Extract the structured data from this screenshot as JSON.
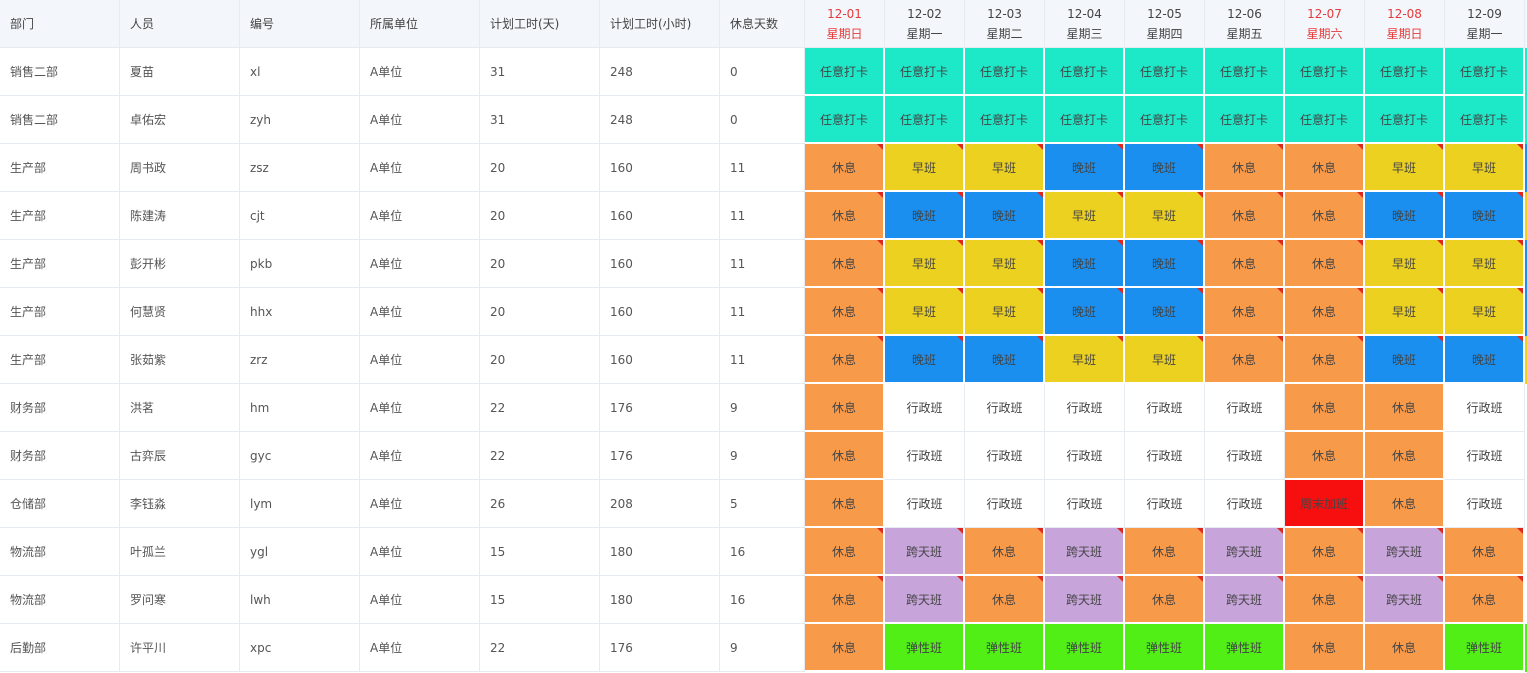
{
  "headers": {
    "dept": "部门",
    "person": "人员",
    "code": "编号",
    "unit": "所属单位",
    "plan_days": "计划工时(天)",
    "plan_hours": "计划工时(小时)",
    "rest_days": "休息天数"
  },
  "days": [
    {
      "date": "12-01",
      "weekday": "星期日",
      "weekend": true
    },
    {
      "date": "12-02",
      "weekday": "星期一",
      "weekend": false
    },
    {
      "date": "12-03",
      "weekday": "星期二",
      "weekend": false
    },
    {
      "date": "12-04",
      "weekday": "星期三",
      "weekend": false
    },
    {
      "date": "12-05",
      "weekday": "星期四",
      "weekend": false
    },
    {
      "date": "12-06",
      "weekday": "星期五",
      "weekend": false
    },
    {
      "date": "12-07",
      "weekday": "星期六",
      "weekend": true
    },
    {
      "date": "12-08",
      "weekday": "星期日",
      "weekend": true
    },
    {
      "date": "12-09",
      "weekday": "星期一",
      "weekend": false
    }
  ],
  "shift_colors": {
    "任意打卡": "#1de9c9",
    "休息": "#f79b4a",
    "早班": "#ecd120",
    "晚班": "#1b8ff0",
    "行政班": "#ffffff",
    "跨天班": "#c7a5db",
    "弹性班": "#52ef17",
    "周末加班": "#f70f0f"
  },
  "edge_colors": [
    "#1de9c9",
    "#1de9c9",
    "#1b8ff0",
    "#ecd120",
    "#1b8ff0",
    "#1b8ff0",
    "#ecd120",
    "#ffffff",
    "#ffffff",
    "#ffffff",
    "#ffffff",
    "#ffffff",
    "#52ef17"
  ],
  "rows": [
    {
      "dept": "销售二部",
      "person": "夏苗",
      "code": "xl",
      "unit": "A单位",
      "plan_days": "31",
      "plan_hours": "248",
      "rest_days": "0",
      "shifts": [
        "任意打卡",
        "任意打卡",
        "任意打卡",
        "任意打卡",
        "任意打卡",
        "任意打卡",
        "任意打卡",
        "任意打卡",
        "任意打卡"
      ],
      "marked": [
        false,
        false,
        false,
        false,
        false,
        false,
        false,
        false,
        false
      ]
    },
    {
      "dept": "销售二部",
      "person": "卓佑宏",
      "code": "zyh",
      "unit": "A单位",
      "plan_days": "31",
      "plan_hours": "248",
      "rest_days": "0",
      "shifts": [
        "任意打卡",
        "任意打卡",
        "任意打卡",
        "任意打卡",
        "任意打卡",
        "任意打卡",
        "任意打卡",
        "任意打卡",
        "任意打卡"
      ],
      "marked": [
        false,
        false,
        false,
        false,
        false,
        false,
        false,
        false,
        false
      ]
    },
    {
      "dept": "生产部",
      "person": "周书政",
      "code": "zsz",
      "unit": "A单位",
      "plan_days": "20",
      "plan_hours": "160",
      "rest_days": "11",
      "shifts": [
        "休息",
        "早班",
        "早班",
        "晚班",
        "晚班",
        "休息",
        "休息",
        "早班",
        "早班"
      ],
      "marked": [
        true,
        true,
        true,
        true,
        true,
        true,
        true,
        true,
        true
      ]
    },
    {
      "dept": "生产部",
      "person": "陈建涛",
      "code": "cjt",
      "unit": "A单位",
      "plan_days": "20",
      "plan_hours": "160",
      "rest_days": "11",
      "shifts": [
        "休息",
        "晚班",
        "晚班",
        "早班",
        "早班",
        "休息",
        "休息",
        "晚班",
        "晚班"
      ],
      "marked": [
        true,
        true,
        true,
        true,
        true,
        true,
        true,
        true,
        true
      ]
    },
    {
      "dept": "生产部",
      "person": "彭开彬",
      "code": "pkb",
      "unit": "A单位",
      "plan_days": "20",
      "plan_hours": "160",
      "rest_days": "11",
      "shifts": [
        "休息",
        "早班",
        "早班",
        "晚班",
        "晚班",
        "休息",
        "休息",
        "早班",
        "早班"
      ],
      "marked": [
        true,
        true,
        true,
        true,
        true,
        true,
        true,
        true,
        true
      ]
    },
    {
      "dept": "生产部",
      "person": "何慧贤",
      "code": "hhx",
      "unit": "A单位",
      "plan_days": "20",
      "plan_hours": "160",
      "rest_days": "11",
      "shifts": [
        "休息",
        "早班",
        "早班",
        "晚班",
        "晚班",
        "休息",
        "休息",
        "早班",
        "早班"
      ],
      "marked": [
        true,
        true,
        true,
        true,
        true,
        true,
        true,
        true,
        true
      ]
    },
    {
      "dept": "生产部",
      "person": "张茹紫",
      "code": "zrz",
      "unit": "A单位",
      "plan_days": "20",
      "plan_hours": "160",
      "rest_days": "11",
      "shifts": [
        "休息",
        "晚班",
        "晚班",
        "早班",
        "早班",
        "休息",
        "休息",
        "晚班",
        "晚班"
      ],
      "marked": [
        true,
        true,
        true,
        true,
        true,
        true,
        true,
        true,
        true
      ]
    },
    {
      "dept": "财务部",
      "person": "洪茗",
      "code": "hm",
      "unit": "A单位",
      "plan_days": "22",
      "plan_hours": "176",
      "rest_days": "9",
      "shifts": [
        "休息",
        "行政班",
        "行政班",
        "行政班",
        "行政班",
        "行政班",
        "休息",
        "休息",
        "行政班"
      ],
      "marked": [
        false,
        false,
        false,
        false,
        false,
        false,
        false,
        false,
        false
      ]
    },
    {
      "dept": "财务部",
      "person": "古弈辰",
      "code": "gyc",
      "unit": "A单位",
      "plan_days": "22",
      "plan_hours": "176",
      "rest_days": "9",
      "shifts": [
        "休息",
        "行政班",
        "行政班",
        "行政班",
        "行政班",
        "行政班",
        "休息",
        "休息",
        "行政班"
      ],
      "marked": [
        false,
        false,
        false,
        false,
        false,
        false,
        false,
        false,
        false
      ]
    },
    {
      "dept": "仓储部",
      "person": "李钰淼",
      "code": "lym",
      "unit": "A单位",
      "plan_days": "26",
      "plan_hours": "208",
      "rest_days": "5",
      "shifts": [
        "休息",
        "行政班",
        "行政班",
        "行政班",
        "行政班",
        "行政班",
        "周末加班",
        "休息",
        "行政班"
      ],
      "marked": [
        false,
        false,
        false,
        false,
        false,
        false,
        false,
        false,
        false
      ]
    },
    {
      "dept": "物流部",
      "person": "叶孤兰",
      "code": "ygl",
      "unit": "A单位",
      "plan_days": "15",
      "plan_hours": "180",
      "rest_days": "16",
      "shifts": [
        "休息",
        "跨天班",
        "休息",
        "跨天班",
        "休息",
        "跨天班",
        "休息",
        "跨天班",
        "休息"
      ],
      "marked": [
        true,
        true,
        true,
        true,
        true,
        true,
        true,
        true,
        true
      ]
    },
    {
      "dept": "物流部",
      "person": "罗问寒",
      "code": "lwh",
      "unit": "A单位",
      "plan_days": "15",
      "plan_hours": "180",
      "rest_days": "16",
      "shifts": [
        "休息",
        "跨天班",
        "休息",
        "跨天班",
        "休息",
        "跨天班",
        "休息",
        "跨天班",
        "休息"
      ],
      "marked": [
        true,
        true,
        true,
        true,
        true,
        true,
        true,
        true,
        true
      ]
    },
    {
      "dept": "后勤部",
      "person": "许平川",
      "code": "xpc",
      "unit": "A单位",
      "plan_days": "22",
      "plan_hours": "176",
      "rest_days": "9",
      "shifts": [
        "休息",
        "弹性班",
        "弹性班",
        "弹性班",
        "弹性班",
        "弹性班",
        "休息",
        "休息",
        "弹性班"
      ],
      "marked": [
        false,
        false,
        false,
        false,
        false,
        false,
        false,
        false,
        false
      ]
    }
  ]
}
